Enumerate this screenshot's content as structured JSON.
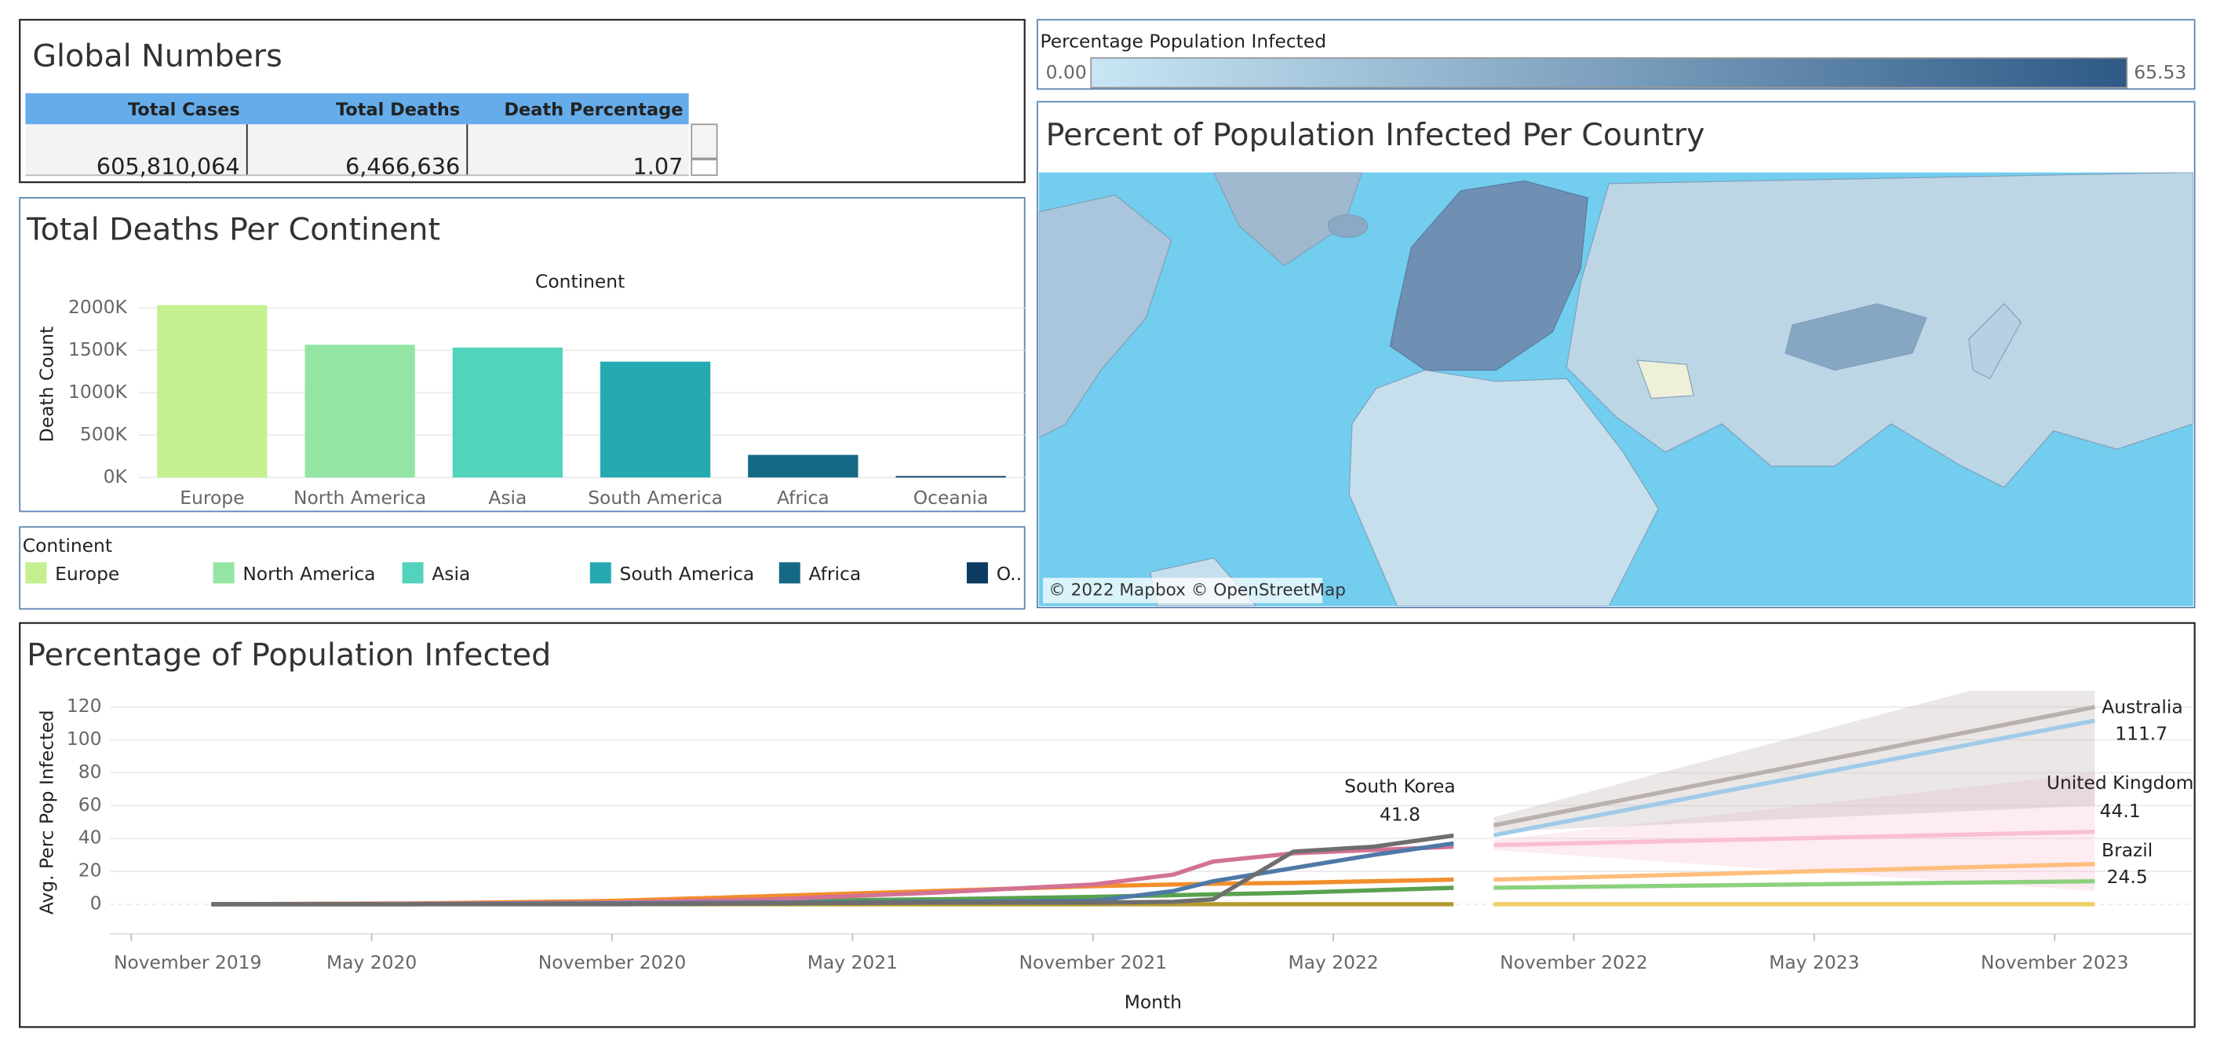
{
  "global_numbers": {
    "title": "Global Numbers",
    "columns": [
      "Total Cases",
      "Total Deaths",
      "Death Percentage"
    ],
    "rows": [
      [
        "605,810,064",
        "6,466,636",
        "1.07"
      ]
    ]
  },
  "map": {
    "title": "Percent of Population Infected Per Country",
    "attribution": "© 2022 Mapbox © OpenStreetMap",
    "color_scale": {
      "title": "Percentage Population Infected",
      "min": {
        "value": 0,
        "label": "0.00"
      },
      "max": 65.53,
      "colors": [
        "#c9e6f5",
        "#2e5986"
      ]
    }
  },
  "chart_data": [
    {
      "type": "bar",
      "title": "Total Deaths Per Continent",
      "x_header": "Continent",
      "y_label": "Death Count",
      "categories": [
        "Europe",
        "North America",
        "Asia",
        "South America",
        "Africa",
        "Oceania"
      ],
      "values": [
        2033000,
        1567000,
        1533000,
        1367000,
        267000,
        17000
      ],
      "colors": [
        "#c5f08f",
        "#94e5a4",
        "#52d3bb",
        "#26aab1",
        "#156985",
        "#0c3b62"
      ],
      "ylim": [
        0,
        2050000
      ],
      "yticks": [
        {
          "value": 0,
          "label": "0K"
        },
        {
          "value": 500000,
          "label": "500K"
        },
        {
          "value": 1000000,
          "label": "1000K"
        },
        {
          "value": 1500000,
          "label": "1500K"
        },
        {
          "value": 2000000,
          "label": "2000K"
        }
      ],
      "grid": true,
      "legend": {
        "title": "Continent",
        "labels": [
          "Europe",
          "North America",
          "Asia",
          "South America",
          "Africa",
          "O.."
        ]
      }
    },
    {
      "type": "line",
      "title": "Percentage of Population Infected",
      "x_label": "Month",
      "y_label": "Avg. Perc Pop Infected",
      "x": [
        "2020-01",
        "2020-06",
        "2020-11",
        "2021-03",
        "2021-07",
        "2021-11",
        "2022-01",
        "2022-02",
        "2022-04",
        "2022-06",
        "2022-08"
      ],
      "forecast_x": [
        "2022-09",
        "2023-12"
      ],
      "xlim": [
        "2019-11",
        "2024-02"
      ],
      "xticks": [
        {
          "value": "2019-11",
          "label": "November 2019"
        },
        {
          "value": "2020-05",
          "label": "May 2020"
        },
        {
          "value": "2020-11",
          "label": "November 2020"
        },
        {
          "value": "2021-05",
          "label": "May 2021"
        },
        {
          "value": "2021-11",
          "label": "November 2021"
        },
        {
          "value": "2022-05",
          "label": "May 2022"
        },
        {
          "value": "2022-11",
          "label": "November 2022"
        },
        {
          "value": "2023-05",
          "label": "May 2023"
        },
        {
          "value": "2023-11",
          "label": "November 2023"
        }
      ],
      "ylim": [
        -18,
        129
      ],
      "yticks": [
        0,
        20,
        40,
        60,
        80,
        100,
        120
      ],
      "grid": true,
      "series": [
        {
          "color": "#b6992d",
          "values": [
            0,
            0,
            0,
            0,
            0,
            0,
            0,
            0,
            0,
            0,
            0
          ],
          "forecast_color": "#f1ce63",
          "forecast": [
            0,
            0
          ]
        },
        {
          "color": "#59a14f",
          "values": [
            0,
            0.3,
            1,
            2,
            3,
            4.5,
            5.5,
            6,
            7,
            8.5,
            10
          ],
          "forecast_color": "#8cd17d",
          "forecast": [
            10,
            14
          ]
        },
        {
          "color": "#f28e2b",
          "values": [
            0,
            0.5,
            2,
            5,
            8,
            11,
            12,
            12.5,
            13,
            14,
            15
          ],
          "forecast_color": "#ffbe7d",
          "forecast": [
            15,
            24.5
          ]
        },
        {
          "color": "#d37295",
          "values": [
            0,
            0.3,
            1,
            3,
            7,
            12,
            18,
            26,
            31,
            33,
            35
          ],
          "forecast_color": "#fabfd2",
          "forecast": [
            36,
            44.1
          ],
          "band_lower": [
            33,
            8
          ],
          "band_upper": [
            39,
            80
          ]
        },
        {
          "color": "#4e79a7",
          "values": [
            0,
            0,
            0.5,
            1,
            1.5,
            2,
            8,
            14,
            22,
            30,
            37
          ],
          "forecast_color": "#a0cbe8",
          "forecast": [
            42,
            111.7
          ]
        },
        {
          "color": "#6e6e6e",
          "values": [
            0,
            0,
            0,
            0.5,
            1,
            1,
            1.5,
            3,
            32,
            35,
            41.8
          ],
          "forecast_color": "#bab0ac",
          "forecast": [
            48,
            120
          ],
          "band_lower": [
            44,
            60
          ],
          "band_upper": [
            53,
            150
          ]
        }
      ],
      "annotations": [
        {
          "label": "South Korea",
          "value": 41.8,
          "x": "2022-08"
        },
        {
          "label": "Australia",
          "value": 111.7,
          "x": "2023-12"
        },
        {
          "label": "United Kingdom",
          "value": 44.1,
          "x": "2023-12"
        },
        {
          "label": "Brazil",
          "value": 24.5,
          "x": "2023-12"
        }
      ]
    }
  ]
}
